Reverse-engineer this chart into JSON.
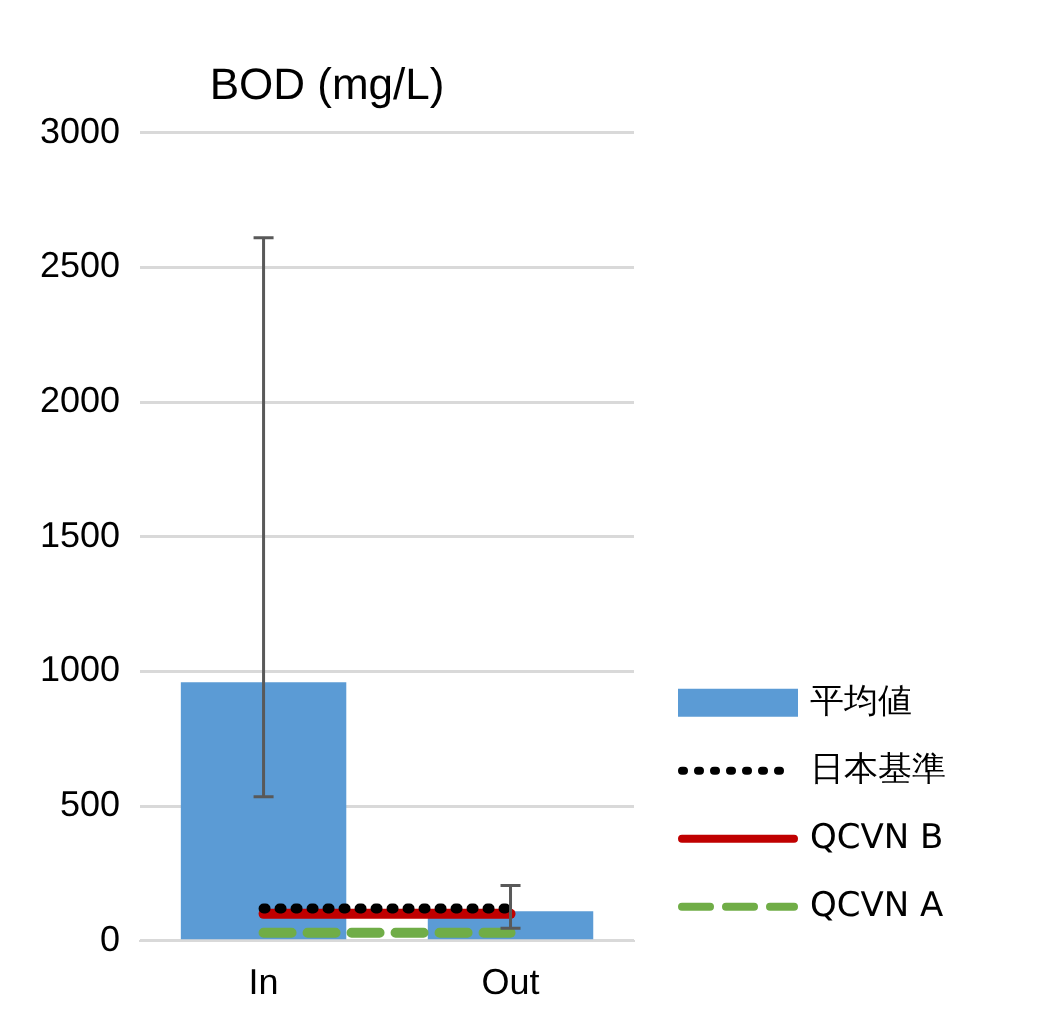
{
  "chart_data": {
    "type": "bar",
    "title": "BOD (mg/L)",
    "categories": [
      "In",
      "Out"
    ],
    "series": [
      {
        "name": "平均値",
        "color": "#5b9bd5",
        "values": [
          960,
          110
        ],
        "errors": [
          [
            535,
            2610
          ],
          [
            47,
            205
          ]
        ]
      },
      {
        "name": "日本基準",
        "type": "line",
        "color": "#000000",
        "values": [
          120,
          120
        ],
        "line_style": "dotted"
      },
      {
        "name": "QCVN B",
        "type": "line",
        "color": "#c00000",
        "values": [
          100,
          100
        ],
        "line_style": "solid"
      },
      {
        "name": "QCVN A",
        "type": "line",
        "color": "#70ad47",
        "values": [
          30,
          30
        ],
        "line_style": "dashed"
      }
    ],
    "ylim": [
      0,
      3000
    ],
    "yticks": [
      0,
      500,
      1000,
      1500,
      2000,
      2500,
      3000
    ],
    "grid": "y",
    "legend": "bottom right",
    "marker": "none"
  }
}
